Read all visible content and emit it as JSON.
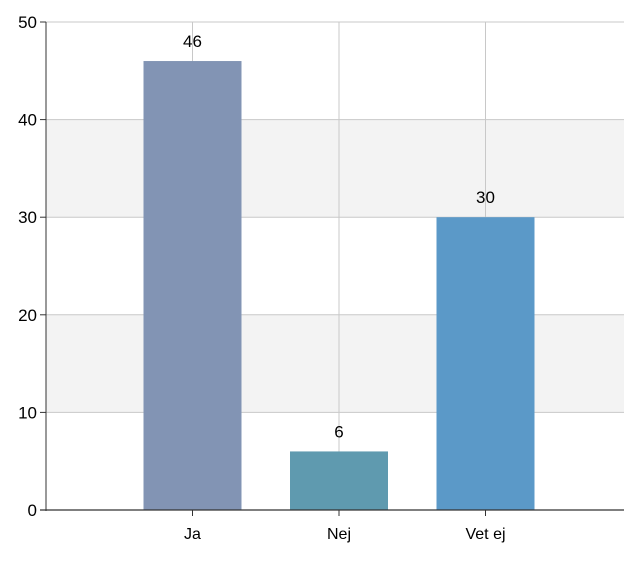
{
  "chart_data": {
    "type": "bar",
    "title": "",
    "xlabel": "",
    "ylabel": "",
    "categories": [
      "Ja",
      "Nej",
      "Vet ej"
    ],
    "values": [
      46,
      6,
      30
    ],
    "data_labels": [
      "46",
      "6",
      "30"
    ],
    "ylim": [
      0,
      50
    ],
    "yticks": [
      0,
      10,
      20,
      30,
      40,
      50
    ],
    "grid": {
      "horizontal": true,
      "vertical": true,
      "alternating_bands": true
    },
    "legend": "none",
    "colors": {
      "bars": [
        "#8294b4",
        "#5f9aaf",
        "#5b99c8"
      ],
      "band": "#f3f3f3",
      "grid": "#c8c8c8",
      "axis": "#333333"
    }
  }
}
